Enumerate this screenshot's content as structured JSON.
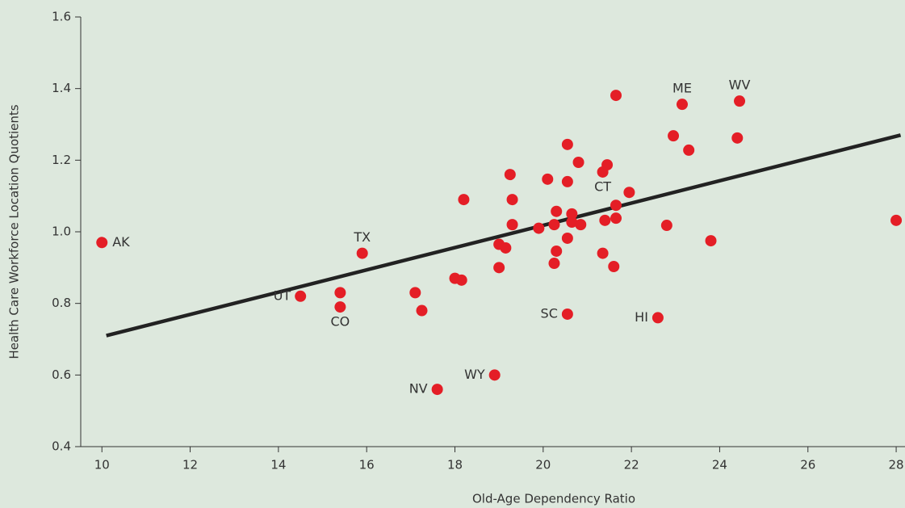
{
  "chart_data": {
    "type": "scatter",
    "x_label": "Old-Age Dependency Ratio",
    "y_label": "Health Care Workforce Location Quotients",
    "color": "#e41e26",
    "x": [
      10,
      14.5,
      15.9,
      15.4,
      15.4,
      17.1,
      17.25,
      18.0,
      18.15,
      17.6,
      18.9,
      18.2,
      19.0,
      19.0,
      19.15,
      19.25,
      19.3,
      19.3,
      19.9,
      20.1,
      20.25,
      20.25,
      20.3,
      20.3,
      20.55,
      20.55,
      20.55,
      20.55,
      20.65,
      20.65,
      20.8,
      20.85,
      21.35,
      21.45,
      21.35,
      21.4,
      21.6,
      21.65,
      21.65,
      21.65,
      21.95,
      22.8,
      22.6,
      22.95,
      23.15,
      23.3,
      23.8,
      24.4,
      24.45,
      28
    ],
    "y": [
      0.97,
      0.82,
      0.94,
      0.79,
      0.83,
      0.83,
      0.78,
      0.87,
      0.865,
      0.56,
      0.6,
      1.09,
      0.965,
      0.9,
      0.955,
      1.16,
      1.09,
      1.02,
      1.01,
      1.147,
      1.02,
      0.912,
      1.057,
      0.946,
      1.244,
      1.14,
      0.982,
      0.77,
      1.05,
      1.027,
      1.194,
      1.02,
      1.167,
      1.187,
      0.94,
      1.032,
      0.903,
      1.074,
      1.038,
      1.381,
      1.11,
      1.018,
      0.76,
      1.268,
      1.356,
      1.228,
      0.975,
      1.262,
      1.365,
      1.032
    ],
    "point_labels": [
      "AK",
      "UT",
      "TX",
      "CO",
      null,
      null,
      null,
      null,
      null,
      "NV",
      "WY",
      null,
      null,
      null,
      null,
      null,
      null,
      null,
      null,
      null,
      null,
      null,
      null,
      null,
      null,
      null,
      null,
      "SC",
      null,
      null,
      null,
      null,
      "CT",
      null,
      null,
      null,
      null,
      null,
      null,
      null,
      null,
      null,
      "HI",
      null,
      "ME",
      null,
      null,
      null,
      "WV",
      null
    ],
    "trendline": {
      "x": [
        10.1,
        28.1
      ],
      "y": [
        0.71,
        1.27
      ],
      "color": "#222222"
    },
    "xlim": [
      9.52,
      28.2
    ],
    "ylim": [
      0.4,
      1.6
    ],
    "xticks": [
      10,
      12,
      14,
      16,
      18,
      20,
      22,
      24,
      26,
      28
    ],
    "yticks": [
      0.4,
      0.6,
      0.8,
      {
        "value": 1,
        "label": "1.0"
      },
      1.2,
      1.4,
      1.6
    ]
  }
}
